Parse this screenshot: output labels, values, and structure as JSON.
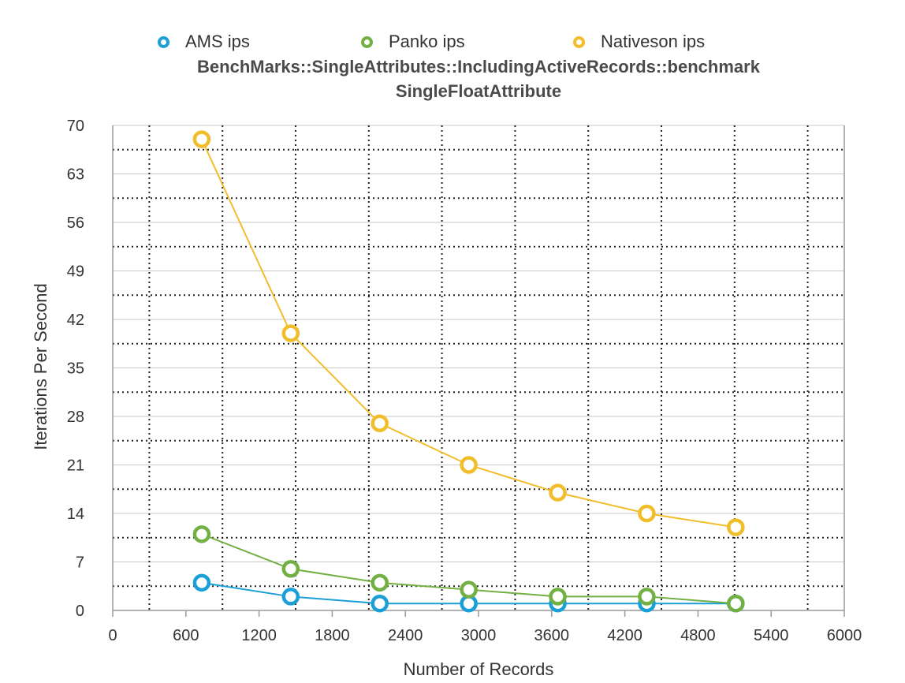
{
  "chart_data": {
    "type": "line",
    "title": "BenchMarks::SingleAttributes::IncludingActiveRecords::benchmark",
    "subtitle": "SingleFloatAttribute",
    "xlabel": "Number of Records",
    "ylabel": "Iterations Per Second",
    "xlim": [
      0,
      6000
    ],
    "ylim": [
      0,
      70
    ],
    "x_ticks": [
      0,
      600,
      1200,
      1800,
      2400,
      3000,
      3600,
      4200,
      4800,
      5400,
      6000
    ],
    "y_ticks": [
      0,
      7,
      14,
      21,
      28,
      35,
      42,
      49,
      56,
      63,
      70
    ],
    "x_tick_labels": [
      "0",
      "600",
      "1200",
      "1800",
      "2400",
      "3000",
      "3600",
      "4200",
      "4800",
      "5400",
      "6000"
    ],
    "y_tick_labels": [
      "0",
      "7",
      "14",
      "21",
      "28",
      "35",
      "42",
      "49",
      "56",
      "63",
      "70"
    ],
    "grid": true,
    "legend_position": "top",
    "x": [
      730,
      1460,
      2190,
      2920,
      3650,
      4380,
      5110
    ],
    "series": [
      {
        "name": "AMS ips",
        "color": "#1a9fd6",
        "values": [
          4,
          2,
          1,
          1,
          1,
          1,
          1
        ]
      },
      {
        "name": "Panko ips",
        "color": "#72b044",
        "values": [
          11,
          6,
          4,
          3,
          2,
          2,
          1
        ]
      },
      {
        "name": "Nativeson ips",
        "color": "#f2bd2a",
        "values": [
          68,
          40,
          27,
          21,
          17,
          14,
          12
        ]
      }
    ]
  }
}
